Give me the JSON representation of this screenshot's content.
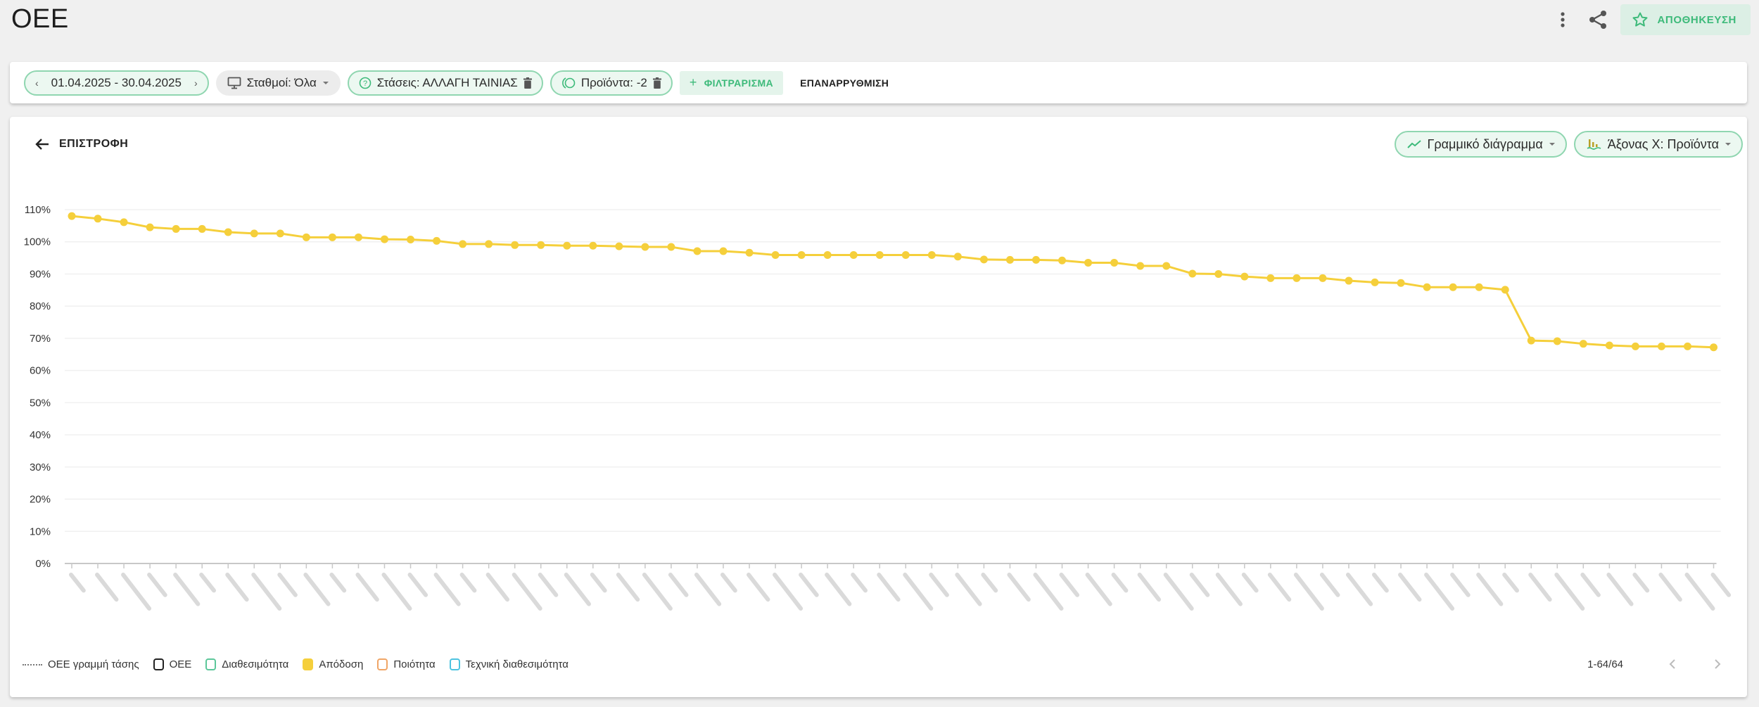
{
  "header": {
    "title": "OEE",
    "save_label": "ΑΠΟΘΗΚΕΥΣΗ",
    "icons": [
      "more-vertical-icon",
      "share-icon",
      "star-icon"
    ]
  },
  "filters": {
    "date_range": "01.04.2025 - 30.04.2025",
    "stations": "Σταθμοί: Όλα",
    "stops": "Στάσεις: ΑΛΛΑΓΗ ΤΑΙΝΙΑΣ",
    "products": "Προϊόντα: -2",
    "add_filter": "ΦΙΛΤΡΑΡΙΣΜΑ",
    "reset": "ΕΠΑΝΑΡΡΥΘΜΙΣΗ"
  },
  "chart_card": {
    "back_label": "ΕΠΙΣΤΡΟΦΗ",
    "chart_type": "Γραμμικό διάγραμμα",
    "x_axis": "Άξονας Χ: Προϊόντα"
  },
  "legend": [
    {
      "label": "OEE γραμμή τάσης",
      "type": "dotted",
      "color": "#777777"
    },
    {
      "label": "OEE",
      "type": "outline",
      "color": "#222222"
    },
    {
      "label": "Διαθεσιμότητα",
      "type": "outline",
      "color": "#5cc79a"
    },
    {
      "label": "Απόδοση",
      "type": "filled",
      "color": "#f5cf3b"
    },
    {
      "label": "Ποιότητα",
      "type": "outline",
      "color": "#f0a566"
    },
    {
      "label": "Τεχνική διαθεσιμότητα",
      "type": "outline",
      "color": "#4cc3e0"
    }
  ],
  "pagination": {
    "text": "1-64/64"
  },
  "colors": {
    "accent": "#3dba7a",
    "chip_border": "#8fd6b0",
    "series_performance": "#f5cf3b"
  },
  "chart_data": {
    "type": "line",
    "title": "OEE",
    "xlabel": "Προϊόντα",
    "ylabel": "",
    "ylim": [
      0,
      110
    ],
    "yticks": [
      "0%",
      "10%",
      "20%",
      "30%",
      "40%",
      "50%",
      "60%",
      "70%",
      "80%",
      "90%",
      "100%",
      "110%"
    ],
    "grid": true,
    "legend_position": "bottom-left",
    "categories_note": "64 product labels (blurred / not legible)",
    "series": [
      {
        "name": "Απόδοση",
        "color": "#f5cf3b",
        "values": [
          108.0,
          107.2,
          106.1,
          104.5,
          104.0,
          104.0,
          103.0,
          102.6,
          102.6,
          101.4,
          101.4,
          101.4,
          100.8,
          100.7,
          100.3,
          99.3,
          99.3,
          99.0,
          99.0,
          98.8,
          98.8,
          98.6,
          98.4,
          98.4,
          97.1,
          97.1,
          96.6,
          95.9,
          95.9,
          95.9,
          95.9,
          95.9,
          95.9,
          95.9,
          95.4,
          94.5,
          94.4,
          94.4,
          94.2,
          93.5,
          93.5,
          92.5,
          92.5,
          90.1,
          90.0,
          89.2,
          88.7,
          88.7,
          88.7,
          87.9,
          87.4,
          87.2,
          85.9,
          85.9,
          85.9,
          85.1,
          69.3,
          69.1,
          68.3,
          67.8,
          67.5,
          67.5,
          67.5,
          67.2
        ]
      }
    ]
  }
}
